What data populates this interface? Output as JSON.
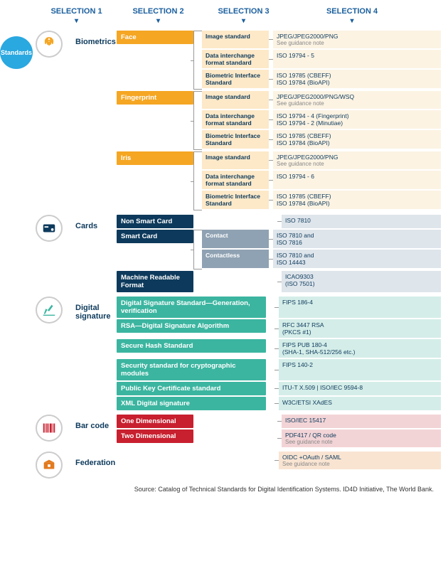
{
  "headers": [
    "SELECTION 1",
    "SELECTION 2",
    "SELECTION 3",
    "SELECTION 4"
  ],
  "root": "Standards",
  "colors": {
    "root": "#2aa8e0",
    "biometrics": {
      "sel2": "#f5a623",
      "sel3": "#fde9c8",
      "sel4": "#fcf3e3",
      "icon": "#f5a623"
    },
    "cards": {
      "sel2": "#0d3a5c",
      "sel3": "#8fa2b3",
      "sel4": "#dee5eb",
      "icon": "#0d3a5c"
    },
    "signature": {
      "sel2": "#3bb5a0",
      "sel4": "#d4ede8",
      "icon": "#3bb5a0"
    },
    "barcode": {
      "sel2": "#c8202f",
      "sel4": "#f3d4d6",
      "icon": "#c8202f"
    },
    "federation": {
      "sel2": "#e27a1e",
      "sel4": "#f9e4d2",
      "icon": "#e27a1e"
    }
  },
  "categories": [
    {
      "id": "biometrics",
      "label": "Biometrics",
      "sel2": [
        {
          "label": "Face",
          "sel3": [
            {
              "label": "Image standard",
              "sel4": "JPEG/JPEG2000/PNG",
              "sub": "See guidance note"
            },
            {
              "label": "Data interchange format standard",
              "sel4": "ISO 19794 - 5"
            },
            {
              "label": "Biometric Interface Standard",
              "sel4": "ISO 19785 (CBEFF)\nISO 19784 (BioAPI)",
              "sub2": "See guidance note"
            }
          ]
        },
        {
          "label": "Fingerprint",
          "sel3": [
            {
              "label": "Image standard",
              "sel4": "JPEG/JPEG2000/PNG/WSQ",
              "sub": "See guidance note"
            },
            {
              "label": "Data interchange format standard",
              "sel4": "ISO 19794 - 4 (Fingerprint)\nISO 19794 - 2 (Minutiae)"
            },
            {
              "label": "Biometric Interface Standard",
              "sel4": "ISO 19785 (CBEFF)\nISO 19784 (BioAPI)"
            }
          ]
        },
        {
          "label": "Iris",
          "sel3": [
            {
              "label": "Image standard",
              "sel4": "JPEG/JPEG2000/PNG",
              "sub": "See guidance note"
            },
            {
              "label": "Data interchange format standard",
              "sel4": "ISO 19794 - 6"
            },
            {
              "label": "Biometric Interface Standard",
              "sel4": "ISO 19785 (CBEFF)\nISO 19784 (BioAPI)"
            }
          ]
        }
      ]
    },
    {
      "id": "cards",
      "label": "Cards",
      "sel2": [
        {
          "label": "Non Smart Card",
          "sel4": "ISO 7810"
        },
        {
          "label": "Smart Card",
          "sel3": [
            {
              "label": "Contact",
              "sel4": "ISO 7810 and\nISO 7816"
            },
            {
              "label": "Contactless",
              "sel4": "ISO 7810 and\nISO 14443"
            }
          ]
        },
        {
          "label": "Machine Readable Format",
          "sel4": "ICAO9303\n(ISO 7501)"
        }
      ]
    },
    {
      "id": "signature",
      "label": "Digital signature",
      "wide": true,
      "sel2": [
        {
          "label": "Digital Signature Standard—Generation, verification",
          "sel4": "FIPS 186-4"
        },
        {
          "label": "RSA—Digital Signature Algorithm",
          "sel4": "RFC 3447 RSA\n(PKCS #1)"
        },
        {
          "label": "Secure Hash Standard",
          "sel4": "FIPS PUB 180-4\n(SHA-1, SHA-512/256 etc.)"
        },
        {
          "label": "Security standard for cryptographic modules",
          "sel4": "FIPS 140-2"
        },
        {
          "label": "Public Key Certificate standard",
          "sel4": "ITU-T X.509  |  ISO/IEC 9594-8"
        },
        {
          "label": "XML Digital signature",
          "sel4": "W3C/ETSI  XAdES"
        }
      ]
    },
    {
      "id": "barcode",
      "label": "Bar code",
      "sel2": [
        {
          "label": "One Dimensional",
          "sel4": "ISO/IEC 15417"
        },
        {
          "label": "Two Dimensional",
          "sel4": "PDF417 / QR code",
          "sub": "See guidance note"
        }
      ]
    },
    {
      "id": "federation",
      "label": "Federation",
      "wide": true,
      "sel2": [
        {
          "label": "",
          "sel4": "OIDC +OAuth / SAML",
          "sub": "See guidance note",
          "nobox": true
        }
      ]
    }
  ],
  "source": "Source: Catalog of Technical Standards for Digital Identification Systems. ID4D Initiative, The World Bank."
}
